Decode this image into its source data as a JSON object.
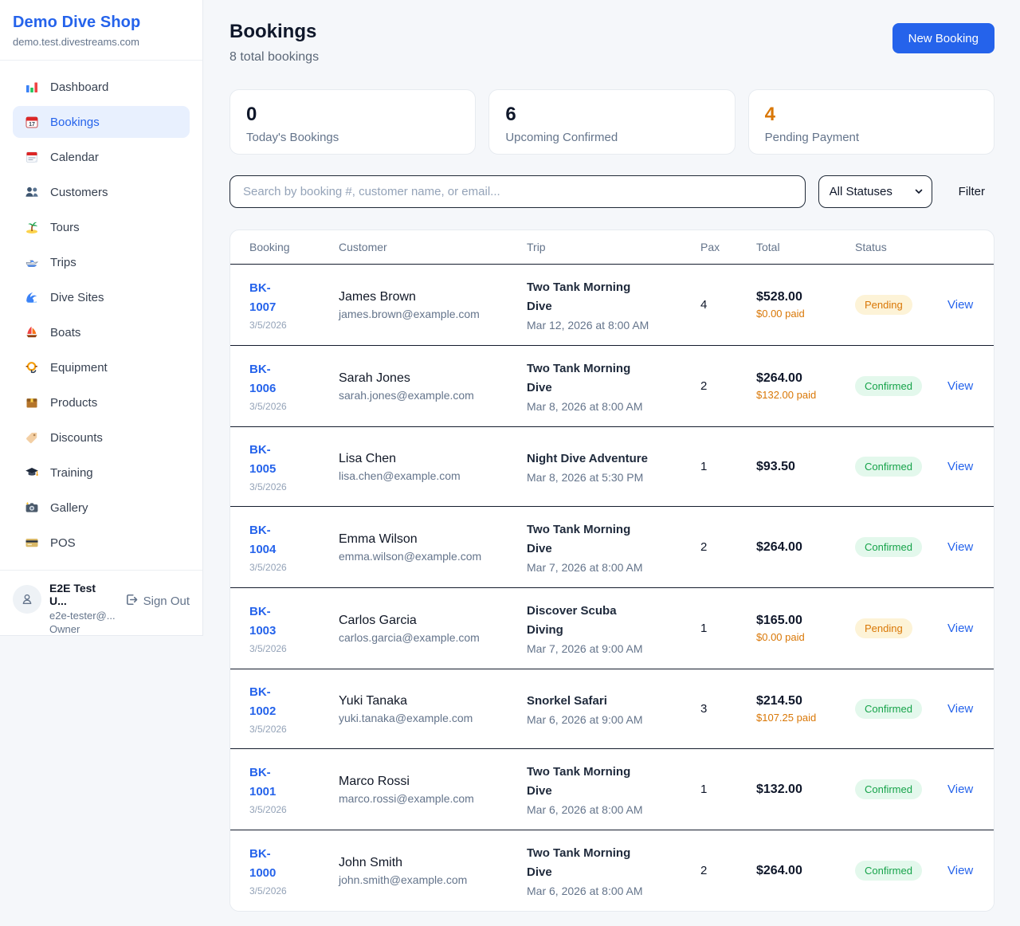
{
  "sidebar": {
    "brand": {
      "name": "Demo Dive Shop",
      "domain": "demo.test.divestreams.com"
    },
    "items": [
      {
        "label": "Dashboard",
        "icon": "dashboard-icon",
        "active": false
      },
      {
        "label": "Bookings",
        "icon": "bookings-icon",
        "active": true
      },
      {
        "label": "Calendar",
        "icon": "calendar-icon",
        "active": false
      },
      {
        "label": "Customers",
        "icon": "customers-icon",
        "active": false
      },
      {
        "label": "Tours",
        "icon": "tours-icon",
        "active": false
      },
      {
        "label": "Trips",
        "icon": "trips-icon",
        "active": false
      },
      {
        "label": "Dive Sites",
        "icon": "dive-sites-icon",
        "active": false
      },
      {
        "label": "Boats",
        "icon": "boats-icon",
        "active": false
      },
      {
        "label": "Equipment",
        "icon": "equipment-icon",
        "active": false
      },
      {
        "label": "Products",
        "icon": "products-icon",
        "active": false
      },
      {
        "label": "Discounts",
        "icon": "discounts-icon",
        "active": false
      },
      {
        "label": "Training",
        "icon": "training-icon",
        "active": false
      },
      {
        "label": "Gallery",
        "icon": "gallery-icon",
        "active": false
      },
      {
        "label": "POS",
        "icon": "pos-icon",
        "active": false
      }
    ],
    "user": {
      "name": "E2E Test U...",
      "email": "e2e-tester@...",
      "role": "Owner",
      "sign_out_label": "Sign Out"
    }
  },
  "header": {
    "title": "Bookings",
    "subtitle": "8 total bookings",
    "new_booking_label": "New Booking"
  },
  "stats": [
    {
      "value": "0",
      "label": "Today's Bookings",
      "accent": "dark"
    },
    {
      "value": "6",
      "label": "Upcoming Confirmed",
      "accent": "dark"
    },
    {
      "value": "4",
      "label": "Pending Payment",
      "accent": "amber"
    }
  ],
  "filters": {
    "search_placeholder": "Search by booking #, customer name, or email...",
    "status_selected": "All Statuses",
    "filter_label": "Filter"
  },
  "table": {
    "columns": [
      "Booking",
      "Customer",
      "Trip",
      "Pax",
      "Total",
      "Status"
    ],
    "view_label": "View",
    "rows": [
      {
        "id": "BK-1007",
        "date": "3/5/2026",
        "customer": "James Brown",
        "email": "james.brown@example.com",
        "trip": "Two Tank Morning Dive",
        "trip_datetime": "Mar 12, 2026 at 8:00 AM",
        "pax": "4",
        "total": "$528.00",
        "paid": "$0.00 paid",
        "status": "Pending"
      },
      {
        "id": "BK-1006",
        "date": "3/5/2026",
        "customer": "Sarah Jones",
        "email": "sarah.jones@example.com",
        "trip": "Two Tank Morning Dive",
        "trip_datetime": "Mar 8, 2026 at 8:00 AM",
        "pax": "2",
        "total": "$264.00",
        "paid": "$132.00 paid",
        "status": "Confirmed"
      },
      {
        "id": "BK-1005",
        "date": "3/5/2026",
        "customer": "Lisa Chen",
        "email": "lisa.chen@example.com",
        "trip": "Night Dive Adventure",
        "trip_datetime": "Mar 8, 2026 at 5:30 PM",
        "pax": "1",
        "total": "$93.50",
        "paid": "",
        "status": "Confirmed"
      },
      {
        "id": "BK-1004",
        "date": "3/5/2026",
        "customer": "Emma Wilson",
        "email": "emma.wilson@example.com",
        "trip": "Two Tank Morning Dive",
        "trip_datetime": "Mar 7, 2026 at 8:00 AM",
        "pax": "2",
        "total": "$264.00",
        "paid": "",
        "status": "Confirmed"
      },
      {
        "id": "BK-1003",
        "date": "3/5/2026",
        "customer": "Carlos Garcia",
        "email": "carlos.garcia@example.com",
        "trip": "Discover Scuba Diving",
        "trip_datetime": "Mar 7, 2026 at 9:00 AM",
        "pax": "1",
        "total": "$165.00",
        "paid": "$0.00 paid",
        "status": "Pending"
      },
      {
        "id": "BK-1002",
        "date": "3/5/2026",
        "customer": "Yuki Tanaka",
        "email": "yuki.tanaka@example.com",
        "trip": "Snorkel Safari",
        "trip_datetime": "Mar 6, 2026 at 9:00 AM",
        "pax": "3",
        "total": "$214.50",
        "paid": "$107.25 paid",
        "status": "Confirmed"
      },
      {
        "id": "BK-1001",
        "date": "3/5/2026",
        "customer": "Marco Rossi",
        "email": "marco.rossi@example.com",
        "trip": "Two Tank Morning Dive",
        "trip_datetime": "Mar 6, 2026 at 8:00 AM",
        "pax": "1",
        "total": "$132.00",
        "paid": "",
        "status": "Confirmed"
      },
      {
        "id": "BK-1000",
        "date": "3/5/2026",
        "customer": "John Smith",
        "email": "john.smith@example.com",
        "trip": "Two Tank Morning Dive",
        "trip_datetime": "Mar 6, 2026 at 8:00 AM",
        "pax": "2",
        "total": "$264.00",
        "paid": "",
        "status": "Confirmed"
      }
    ]
  },
  "colors": {
    "accent_blue": "#2563eb",
    "pending_text": "#d97706",
    "pending_bg": "#fdf3d7",
    "confirmed_text": "#16a34a",
    "confirmed_bg": "#e3f8ec",
    "paid_amber": "#d97706",
    "active_nav_bg": "#e8f0fe"
  }
}
